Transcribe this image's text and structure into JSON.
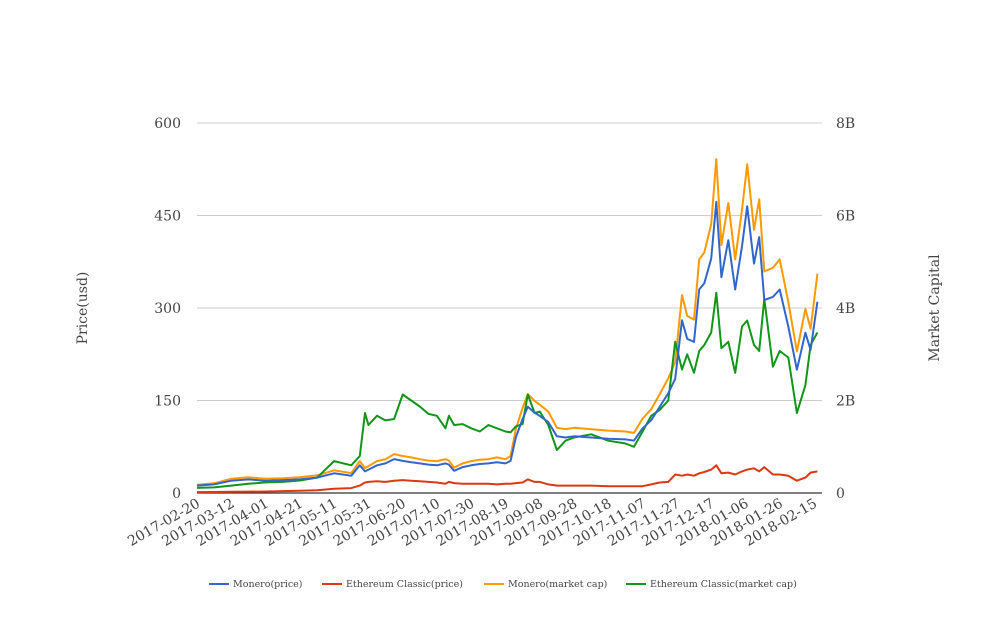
{
  "chart_data": {
    "type": "line",
    "title": "",
    "ylabel_left": "Price(usd)",
    "ylabel_right": "Market Capital",
    "left_axis": {
      "range": [
        0,
        600
      ],
      "ticks": [
        0,
        150,
        300,
        450,
        600
      ],
      "tick_labels": [
        "0",
        "150",
        "300",
        "450",
        "600"
      ]
    },
    "right_axis": {
      "range": [
        0,
        8000000000
      ],
      "ticks": [
        0,
        2000000000,
        4000000000,
        6000000000,
        8000000000
      ],
      "tick_labels": [
        "0",
        "2B",
        "4B",
        "6B",
        "8B"
      ]
    },
    "x_tick_labels": [
      "2017-02-20",
      "2017-03-12",
      "2017-04-01",
      "2017-04-21",
      "2017-05-11",
      "2017-05-31",
      "2017-06-20",
      "2017-07-10",
      "2017-07-30",
      "2017-08-19",
      "2017-09-08",
      "2017-09-28",
      "2017-10-18",
      "2017-11-07",
      "2017-11-27",
      "2017-12-17",
      "2018-01-06",
      "2018-01-26",
      "2018-02-15"
    ],
    "grid": true,
    "legend_position": "bottom",
    "x": [
      "2017-02-20",
      "2017-03-02",
      "2017-03-12",
      "2017-03-22",
      "2017-04-01",
      "2017-04-11",
      "2017-04-21",
      "2017-05-01",
      "2017-05-11",
      "2017-05-21",
      "2017-05-26",
      "2017-05-29",
      "2017-05-31",
      "2017-06-05",
      "2017-06-10",
      "2017-06-15",
      "2017-06-20",
      "2017-06-25",
      "2017-06-30",
      "2017-07-05",
      "2017-07-10",
      "2017-07-15",
      "2017-07-17",
      "2017-07-20",
      "2017-07-25",
      "2017-07-30",
      "2017-08-04",
      "2017-08-09",
      "2017-08-14",
      "2017-08-19",
      "2017-08-22",
      "2017-08-25",
      "2017-08-29",
      "2017-09-01",
      "2017-09-05",
      "2017-09-08",
      "2017-09-13",
      "2017-09-18",
      "2017-09-23",
      "2017-09-28",
      "2017-10-08",
      "2017-10-18",
      "2017-10-28",
      "2017-11-02",
      "2017-11-07",
      "2017-11-12",
      "2017-11-17",
      "2017-11-22",
      "2017-11-26",
      "2017-11-30",
      "2017-12-03",
      "2017-12-07",
      "2017-12-10",
      "2017-12-13",
      "2017-12-17",
      "2017-12-20",
      "2017-12-23",
      "2017-12-27",
      "2017-12-31",
      "2018-01-04",
      "2018-01-07",
      "2018-01-11",
      "2018-01-14",
      "2018-01-17",
      "2018-01-22",
      "2018-01-26",
      "2018-01-31",
      "2018-02-05",
      "2018-02-10",
      "2018-02-13",
      "2018-02-17"
    ],
    "series": [
      {
        "name": "Monero(price)",
        "axis": "left",
        "color": "#3366cc",
        "values": [
          12,
          14,
          20,
          22,
          20,
          21,
          22,
          25,
          32,
          28,
          45,
          35,
          38,
          45,
          48,
          55,
          52,
          50,
          48,
          46,
          45,
          48,
          46,
          36,
          42,
          45,
          47,
          48,
          50,
          48,
          52,
          90,
          120,
          140,
          130,
          125,
          115,
          92,
          90,
          92,
          90,
          88,
          87,
          85,
          105,
          118,
          140,
          162,
          185,
          280,
          250,
          245,
          330,
          340,
          380,
          472,
          350,
          410,
          330,
          400,
          465,
          372,
          415,
          313,
          318,
          330,
          270,
          200,
          260,
          232,
          310
        ]
      },
      {
        "name": "Ethereum Classic(price)",
        "axis": "left",
        "color": "#dc3912",
        "values": [
          1.5,
          1.6,
          2,
          2.2,
          2.5,
          3,
          3.5,
          4.5,
          7,
          8,
          12,
          17,
          18,
          19,
          18,
          20,
          21,
          20,
          19,
          18,
          17,
          15,
          18,
          16,
          15,
          15,
          15,
          15,
          14,
          15,
          15,
          16,
          17,
          22,
          18,
          18,
          14,
          12,
          12,
          12,
          12,
          11,
          11,
          11,
          11,
          14,
          17,
          18,
          30,
          28,
          30,
          28,
          32,
          34,
          38,
          45,
          32,
          33,
          30,
          35,
          38,
          40,
          35,
          42,
          30,
          30,
          28,
          20,
          25,
          33,
          35
        ]
      },
      {
        "name": "Monero(market cap)",
        "axis": "right",
        "color": "#ff9900",
        "values": [
          180000000.0,
          210000000.0,
          310000000.0,
          340000000.0,
          310000000.0,
          320000000.0,
          340000000.0,
          380000000.0,
          490000000.0,
          430000000.0,
          690000000.0,
          540000000.0,
          580000000.0,
          690000000.0,
          730000000.0,
          840000000.0,
          800000000.0,
          770000000.0,
          730000000.0,
          700000000.0,
          690000000.0,
          730000000.0,
          700000000.0,
          550000000.0,
          640000000.0,
          690000000.0,
          720000000.0,
          730000000.0,
          770000000.0,
          730000000.0,
          800000000.0,
          1380000000.0,
          1840000000.0,
          2140000000.0,
          1990000000.0,
          1910000000.0,
          1760000000.0,
          1410000000.0,
          1380000000.0,
          1410000000.0,
          1380000000.0,
          1350000000.0,
          1330000000.0,
          1300000000.0,
          1610000000.0,
          1810000000.0,
          2140000000.0,
          2480000000.0,
          2830000000.0,
          4280000000.0,
          3830000000.0,
          3750000000.0,
          5050000000.0,
          5200000000.0,
          5810000000.0,
          7220000000.0,
          5360000000.0,
          6270000000.0,
          5050000000.0,
          6120000000.0,
          7110000000.0,
          5690000000.0,
          6350000000.0,
          4790000000.0,
          4870000000.0,
          5050000000.0,
          4130000000.0,
          3060000000.0,
          3980000000.0,
          3550000000.0,
          4740000000.0
        ]
      },
      {
        "name": "Ethereum Classic(market cap)",
        "axis": "right",
        "color": "#109618",
        "values": [
          110000000.0,
          120000000.0,
          160000000.0,
          200000000.0,
          230000000.0,
          240000000.0,
          270000000.0,
          330000000.0,
          690000000.0,
          600000000.0,
          800000000.0,
          1730000000.0,
          1470000000.0,
          1670000000.0,
          1570000000.0,
          1600000000.0,
          2130000000.0,
          2000000000.0,
          1870000000.0,
          1710000000.0,
          1670000000.0,
          1400000000.0,
          1670000000.0,
          1470000000.0,
          1490000000.0,
          1400000000.0,
          1330000000.0,
          1470000000.0,
          1400000000.0,
          1330000000.0,
          1310000000.0,
          1440000000.0,
          1490000000.0,
          2130000000.0,
          1730000000.0,
          1760000000.0,
          1470000000.0,
          930000000.0,
          1130000000.0,
          1200000000.0,
          1270000000.0,
          1130000000.0,
          1070000000.0,
          1000000000.0,
          1330000000.0,
          1670000000.0,
          1800000000.0,
          2000000000.0,
          3270000000.0,
          2670000000.0,
          3000000000.0,
          2600000000.0,
          3070000000.0,
          3200000000.0,
          3470000000.0,
          4330000000.0,
          3130000000.0,
          3270000000.0,
          2600000000.0,
          3600000000.0,
          3730000000.0,
          3200000000.0,
          3070000000.0,
          4200000000.0,
          2730000000.0,
          3070000000.0,
          2930000000.0,
          1730000000.0,
          2330000000.0,
          3200000000.0,
          3470000000.0
        ]
      }
    ]
  }
}
